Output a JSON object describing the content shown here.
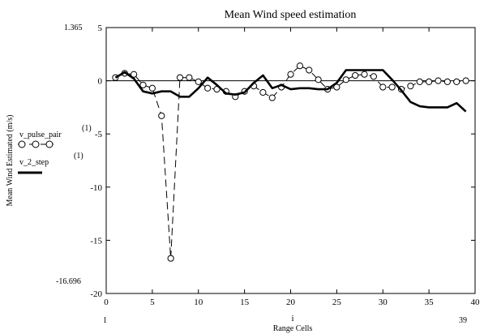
{
  "chart_data": {
    "type": "line",
    "title": "Mean Wind speed estimation",
    "xlabel": "Range Cells",
    "x_var": "i",
    "ylabel": "Mean Wind Estimated (m/s)",
    "xlim": [
      0,
      40
    ],
    "ylim": [
      -20,
      5
    ],
    "x_ticks": [
      0,
      5,
      10,
      15,
      20,
      25,
      30,
      35,
      40
    ],
    "y_ticks": [
      5,
      0,
      -5,
      -10,
      -15,
      -20
    ],
    "x_range_labels": {
      "min": "1",
      "max": "39"
    },
    "y_range_labels": {
      "max": "1.365",
      "min": "-16.696"
    },
    "grid": false,
    "legend": "left",
    "series": [
      {
        "name": "v_pulse_pair",
        "superscript": "(1)",
        "style": "dashed-circle-markers",
        "color": "#000000",
        "x": [
          1,
          2,
          3,
          4,
          5,
          6,
          7,
          8,
          9,
          10,
          11,
          12,
          13,
          14,
          15,
          16,
          17,
          18,
          19,
          20,
          21,
          22,
          23,
          24,
          25,
          26,
          27,
          28,
          29,
          30,
          31,
          32,
          33,
          34,
          35,
          36,
          37,
          38,
          39
        ],
        "values": [
          0.3,
          0.7,
          0.6,
          -0.4,
          -0.7,
          -3.3,
          -16.7,
          0.3,
          0.3,
          -0.1,
          -0.7,
          -0.8,
          -1.0,
          -1.5,
          -1.0,
          -0.5,
          -1.1,
          -1.6,
          -0.6,
          0.6,
          1.4,
          1.0,
          0.1,
          -0.8,
          -0.6,
          0.1,
          0.5,
          0.6,
          0.4,
          -0.6,
          -0.6,
          -0.8,
          -0.5,
          -0.1,
          -0.1,
          0.0,
          -0.1,
          -0.1,
          0.0
        ]
      },
      {
        "name": "v_2_step",
        "superscript": "(1)",
        "style": "solid-thick",
        "color": "#000000",
        "x": [
          1,
          2,
          3,
          4,
          5,
          6,
          7,
          8,
          9,
          10,
          11,
          12,
          13,
          14,
          15,
          16,
          17,
          18,
          19,
          20,
          21,
          22,
          23,
          24,
          25,
          26,
          27,
          28,
          29,
          30,
          31,
          32,
          33,
          34,
          35,
          36,
          37,
          38,
          39
        ],
        "values": [
          0.3,
          0.8,
          0.2,
          -1.0,
          -1.2,
          -1.0,
          -1.0,
          -1.5,
          -1.5,
          -0.7,
          0.3,
          -0.4,
          -1.2,
          -1.3,
          -1.1,
          -0.2,
          0.5,
          -0.7,
          -0.4,
          -0.8,
          -0.7,
          -0.7,
          -0.8,
          -0.8,
          -0.2,
          1.0,
          1.0,
          1.0,
          1.0,
          1.0,
          0.1,
          -0.9,
          -2.0,
          -2.4,
          -2.5,
          -2.5,
          -2.5,
          -2.1,
          -2.9
        ]
      }
    ]
  }
}
